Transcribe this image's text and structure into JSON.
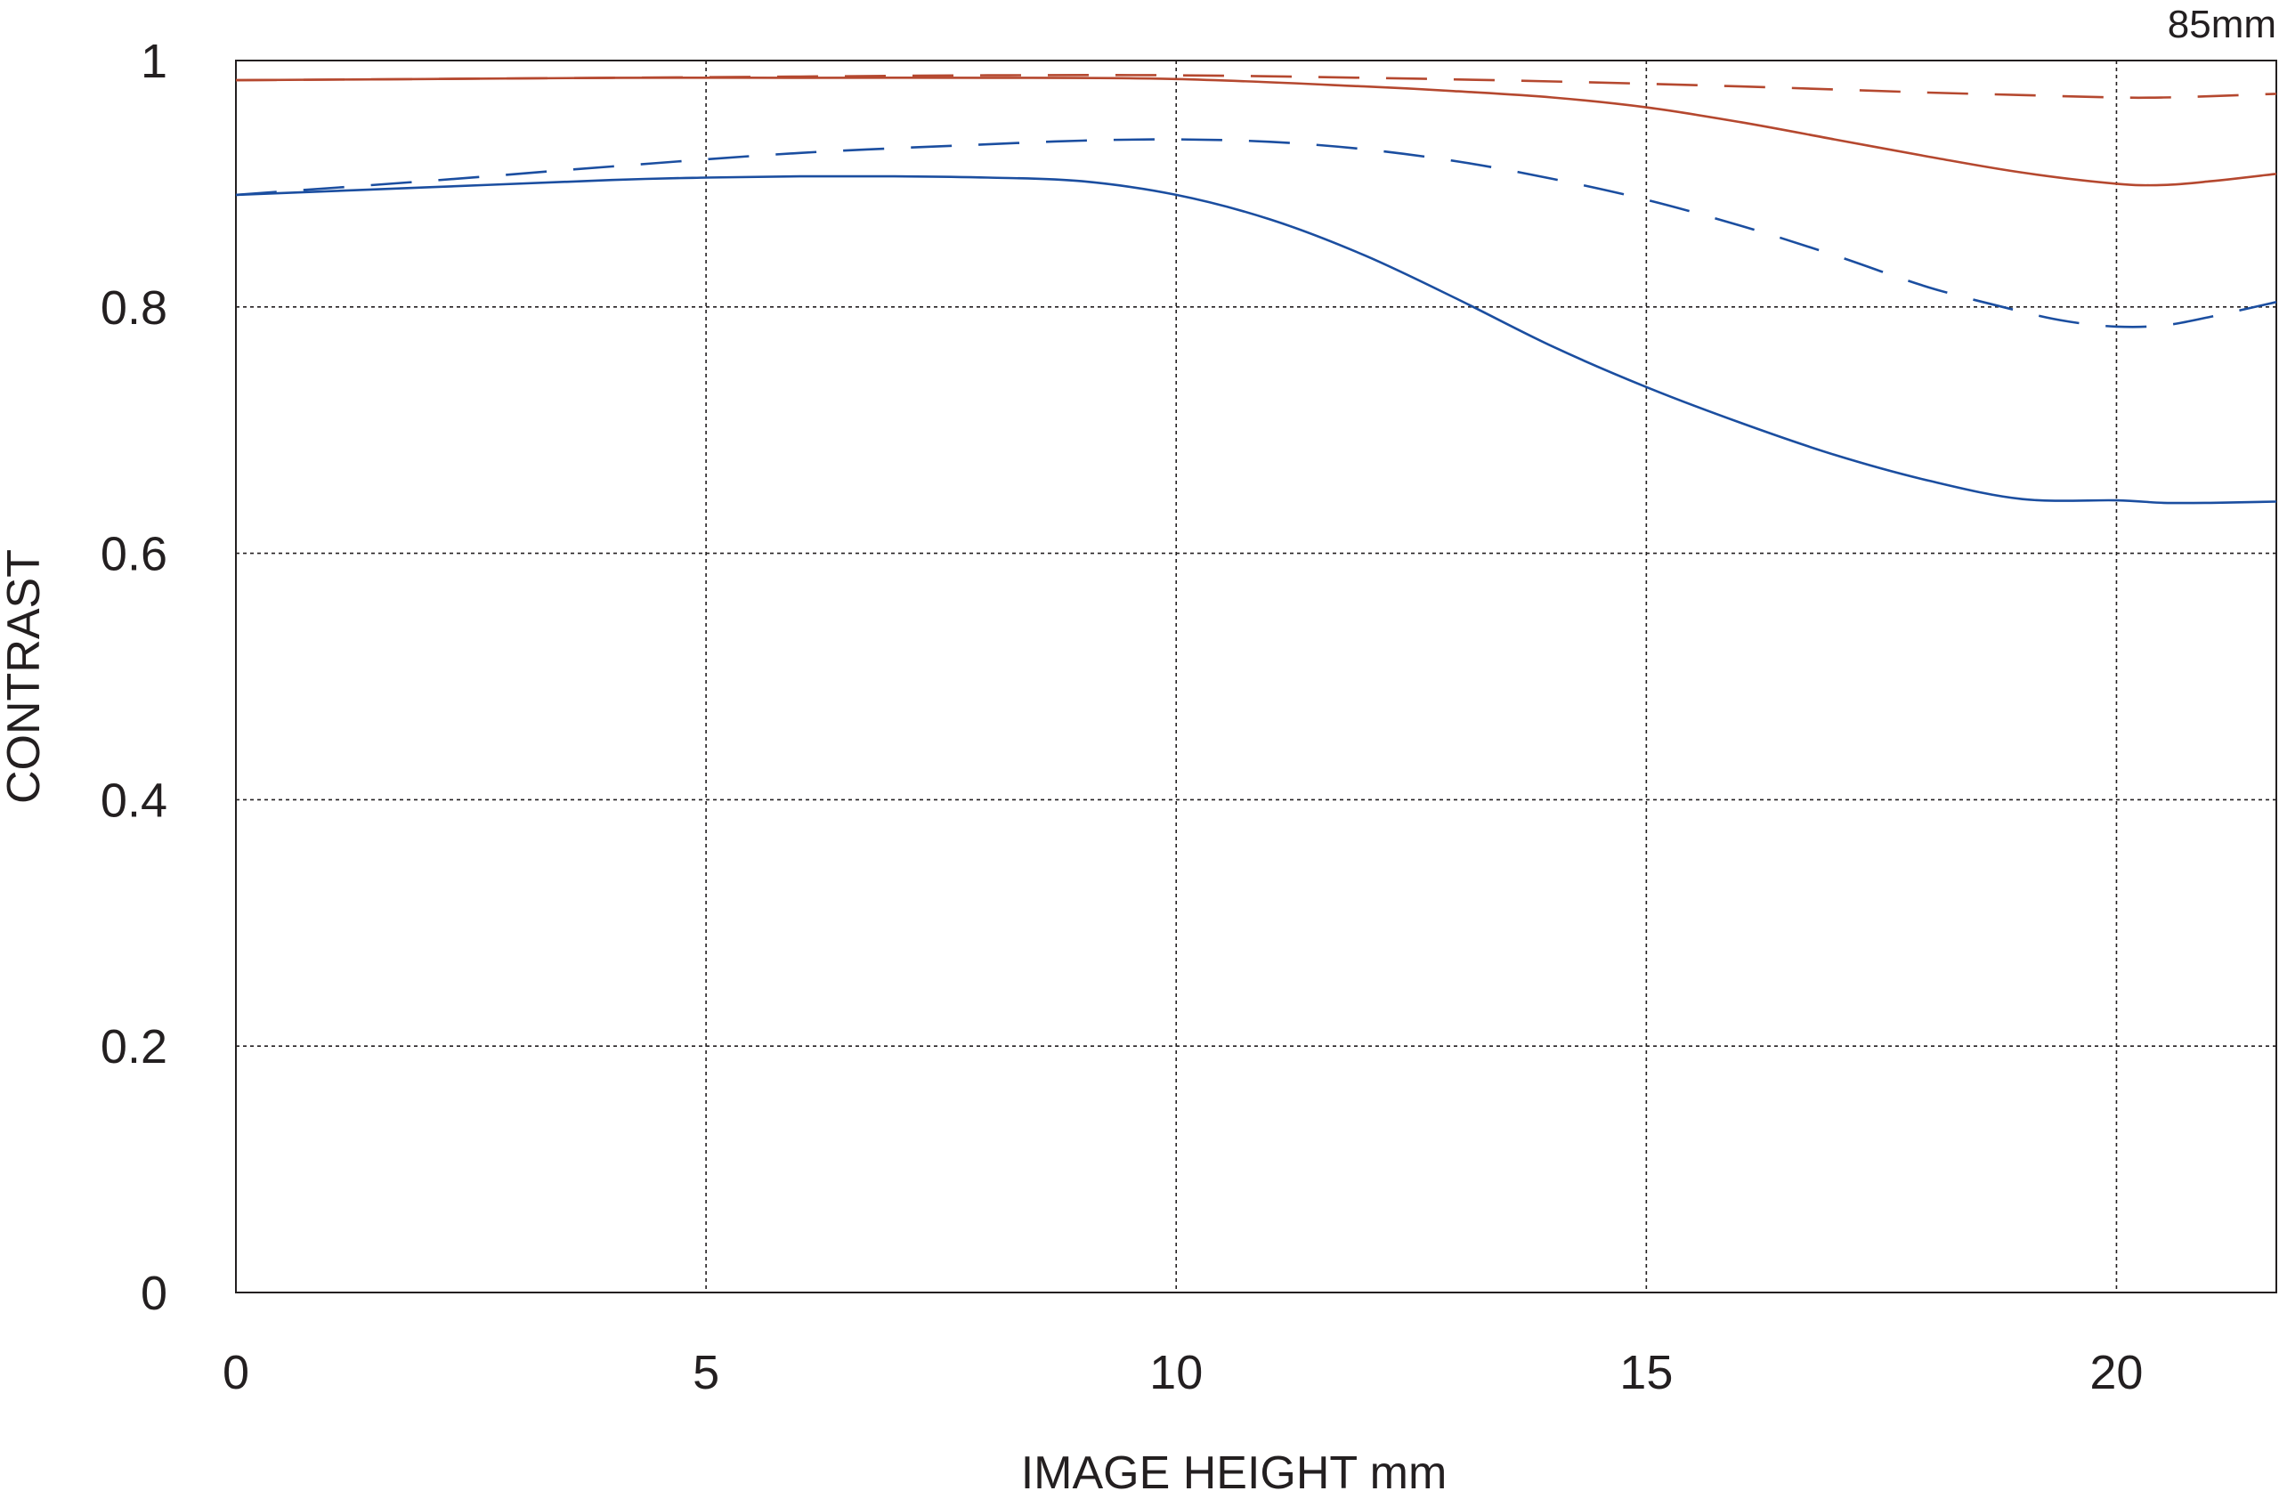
{
  "chart_data": {
    "type": "line",
    "title": "85mm",
    "xlabel": "IMAGE HEIGHT  mm",
    "ylabel": "CONTRAST",
    "xlim": [
      0,
      21.7
    ],
    "ylim": [
      0,
      1
    ],
    "x_ticks": [
      0,
      5,
      10,
      15,
      20
    ],
    "x_tick_labels": [
      "0",
      "5",
      "10",
      "15",
      "20"
    ],
    "y_ticks": [
      0,
      0.2,
      0.4,
      0.6,
      0.8,
      1
    ],
    "y_tick_labels": [
      "0",
      "0.2",
      "0.4",
      "0.6",
      "0.8",
      "1"
    ],
    "grid": true,
    "legend": "none",
    "series": [
      {
        "color": "#b5482f",
        "dash": "solid",
        "x": [
          0,
          2,
          4,
          6,
          8,
          10,
          12,
          13,
          14,
          15,
          16,
          17,
          18,
          19,
          20,
          20.5,
          21,
          21.7
        ],
        "y": [
          0.984,
          0.985,
          0.986,
          0.986,
          0.986,
          0.985,
          0.979,
          0.975,
          0.97,
          0.962,
          0.95,
          0.936,
          0.922,
          0.909,
          0.9,
          0.899,
          0.902,
          0.908
        ]
      },
      {
        "color": "#b5482f",
        "dash": "dashed",
        "x": [
          0,
          2,
          4,
          6,
          8,
          10,
          12,
          14,
          16,
          18,
          19,
          20,
          20.5,
          21,
          21.7
        ],
        "y": [
          0.984,
          0.985,
          0.986,
          0.987,
          0.988,
          0.988,
          0.986,
          0.983,
          0.979,
          0.974,
          0.972,
          0.97,
          0.97,
          0.971,
          0.973
        ]
      },
      {
        "color": "#1b4ea0",
        "dash": "solid",
        "x": [
          0,
          2,
          4,
          5,
          6,
          7,
          8,
          9,
          10,
          11,
          12,
          13,
          14,
          15,
          16,
          17,
          18,
          19,
          20,
          20.5,
          21,
          21.7
        ],
        "y": [
          0.891,
          0.897,
          0.903,
          0.905,
          0.906,
          0.906,
          0.905,
          0.902,
          0.891,
          0.871,
          0.842,
          0.806,
          0.768,
          0.735,
          0.706,
          0.68,
          0.659,
          0.644,
          0.643,
          0.641,
          0.641,
          0.642
        ]
      },
      {
        "color": "#1b4ea0",
        "dash": "dashed",
        "x": [
          0,
          2,
          4,
          6,
          8,
          9,
          10,
          11,
          12,
          13,
          14,
          15,
          16,
          17,
          18,
          19,
          19.5,
          20,
          20.5,
          21,
          21.7
        ],
        "y": [
          0.891,
          0.902,
          0.914,
          0.925,
          0.932,
          0.935,
          0.936,
          0.934,
          0.928,
          0.918,
          0.904,
          0.887,
          0.866,
          0.842,
          0.816,
          0.796,
          0.788,
          0.784,
          0.785,
          0.792,
          0.804
        ]
      }
    ]
  }
}
